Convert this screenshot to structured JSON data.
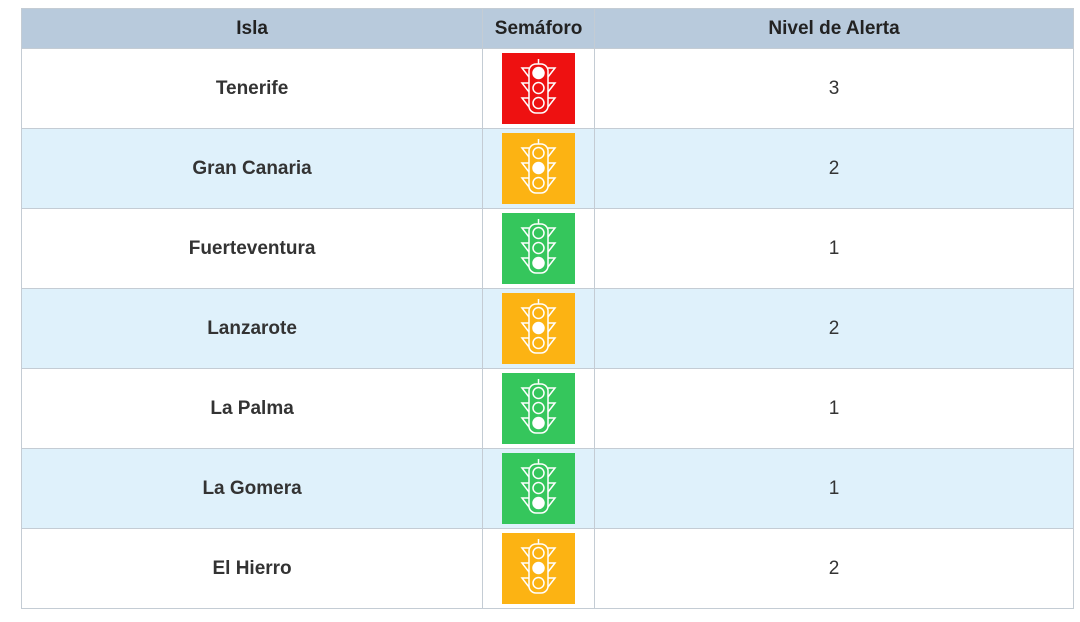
{
  "headers": [
    "Isla",
    "Semáforo",
    "Nivel de Alerta"
  ],
  "colors": {
    "red": "#ee1111",
    "amber": "#fcb313",
    "green": "#35c65c"
  },
  "rows": [
    {
      "isla": "Tenerife",
      "light": "red",
      "active": 0,
      "nivel": "3"
    },
    {
      "isla": "Gran Canaria",
      "light": "amber",
      "active": 1,
      "nivel": "2"
    },
    {
      "isla": "Fuerteventura",
      "light": "green",
      "active": 2,
      "nivel": "1"
    },
    {
      "isla": "Lanzarote",
      "light": "amber",
      "active": 1,
      "nivel": "2"
    },
    {
      "isla": "La Palma",
      "light": "green",
      "active": 2,
      "nivel": "1"
    },
    {
      "isla": "La Gomera",
      "light": "green",
      "active": 2,
      "nivel": "1"
    },
    {
      "isla": "El Hierro",
      "light": "amber",
      "active": 1,
      "nivel": "2"
    }
  ]
}
